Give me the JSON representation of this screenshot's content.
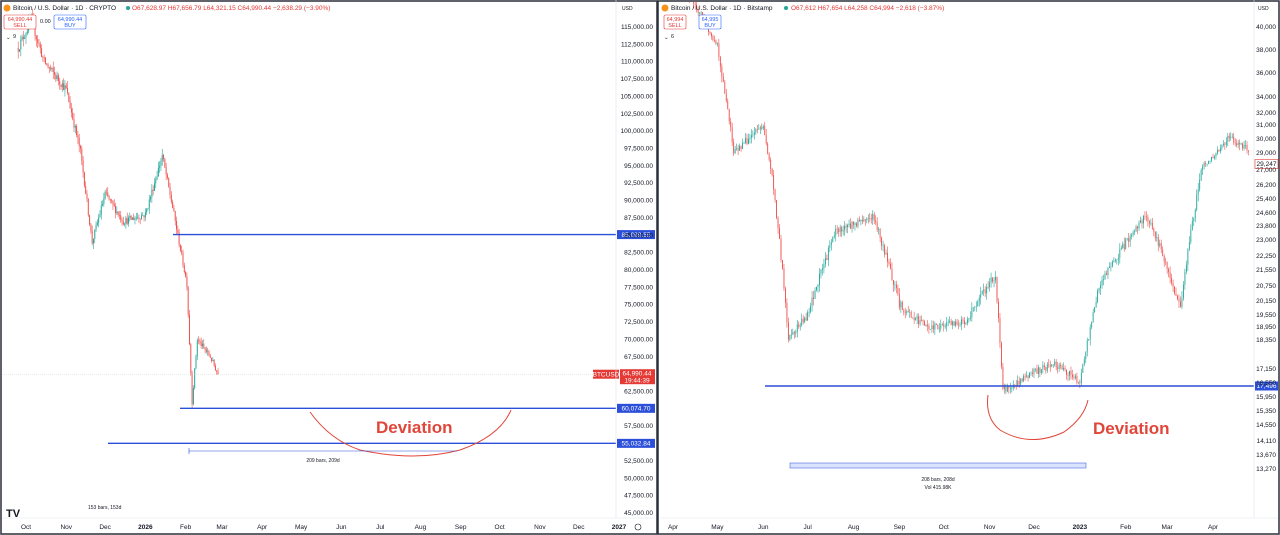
{
  "colors": {
    "up": "#26a69a",
    "down": "#ef5350",
    "level_line": "#2b4fd8",
    "annotation": "#e0463a",
    "price_label": "#e53935",
    "border": "#2a2e39"
  },
  "left": {
    "header": {
      "symbol": "Bitcoin / U.S. Dollar · 1D · CRYPTO",
      "ohlc": "O67,628.97 H67,656.79 L64,321.15 C64,990.44 −2,638.29 (−3.90%)",
      "sell_price": "64,990.44",
      "sell_label": "SELL",
      "buy_price": "64,990.44",
      "buy_label": "BUY",
      "spread": "0.00",
      "currency": "USD",
      "indicator_count": "9"
    },
    "y_ticks": [
      "115,000.00",
      "112,500.00",
      "110,000.00",
      "107,500.00",
      "105,000.00",
      "102,500.00",
      "100,000.00",
      "97,500.00",
      "95,000.00",
      "92,500.00",
      "90,000.00",
      "87,500.00",
      "85,000.00",
      "82,500.00",
      "80,000.00",
      "77,500.00",
      "75,000.00",
      "72,500.00",
      "70,000.00",
      "67,500.00",
      "62,500.00",
      "57,500.00",
      "52,500.00",
      "50,000.00",
      "47,500.00",
      "45,000.00"
    ],
    "x_ticks": [
      "Oct",
      "Nov",
      "Dec",
      "2026",
      "Feb",
      "Mar",
      "Apr",
      "May",
      "Jun",
      "Jul",
      "Aug",
      "Sep",
      "Oct",
      "Nov",
      "Dec",
      "2027"
    ],
    "levels": [
      "85,099.55",
      "60,074.70",
      "55,032.84"
    ],
    "current": {
      "symbol": "BTCUSD",
      "price": "64,990.44",
      "countdown": "19:44:39"
    },
    "annotation": "Deviation",
    "range_label": "209 bars, 209d",
    "bottom_note": "153 bars, 153d"
  },
  "right": {
    "header": {
      "symbol": "Bitcoin / U.S. Dollar · 1D · Bitstamp",
      "ohlc": "O67,612 H67,654 L64,258 C64,994 −2,618 (−3.87%)",
      "sell_price": "64,994",
      "sell_label": "SELL",
      "buy_price": "64,995",
      "buy_label": "BUY",
      "currency": "USD",
      "indicator_count": "6"
    },
    "y_ticks": [
      "40,000",
      "38,000",
      "36,000",
      "34,000",
      "32,000",
      "31,000",
      "30,000",
      "29,000",
      "27,000",
      "26,200",
      "25,400",
      "24,600",
      "23,800",
      "23,000",
      "22,250",
      "21,550",
      "20,750",
      "20,150",
      "19,550",
      "18,950",
      "18,350",
      "17,150",
      "16,550",
      "15,950",
      "15,350",
      "14,550",
      "14,110",
      "13,670",
      "13,270"
    ],
    "x_ticks": [
      "Apr",
      "May",
      "Jun",
      "Jul",
      "Aug",
      "Sep",
      "Oct",
      "Nov",
      "Dec",
      "2023",
      "Feb",
      "Mar",
      "Apr"
    ],
    "level": "17,496",
    "current_price": "29,247",
    "annotation": "Deviation",
    "range_label": "208 bars, 208d",
    "range_sublabel": "Vol 415.98K"
  },
  "chart_data": [
    {
      "type": "candlestick",
      "title": "Bitcoin / U.S. Dollar · 1D · CRYPTO",
      "ylim": [
        44000,
        117000
      ],
      "x_range": [
        "Oct 2025",
        "Jan 2027"
      ],
      "grid": false,
      "approx_path": [
        [
          "Sep 25 2025",
          112000
        ],
        [
          "Oct 5 2025",
          116000
        ],
        [
          "Oct 15 2025",
          110000
        ],
        [
          "Nov 1 2025",
          106000
        ],
        [
          "Nov 12 2025",
          97000
        ],
        [
          "Nov 21 2025",
          84000
        ],
        [
          "Dec 1 2025",
          91000
        ],
        [
          "Dec 15 2025",
          87000
        ],
        [
          "Jan 1 2026",
          88000
        ],
        [
          "Jan 14 2026",
          96500
        ],
        [
          "Jan 22 2026",
          89000
        ],
        [
          "Feb 2 2026",
          78000
        ],
        [
          "Feb 6 2026",
          61000
        ],
        [
          "Feb 10 2026",
          70000
        ],
        [
          "Feb 20 2026",
          67500
        ],
        [
          "Feb 26 2026",
          64990
        ]
      ],
      "horizontal_levels": [
        85099.55,
        60074.7,
        55032.84
      ],
      "last_price": 64990.44
    },
    {
      "type": "candlestick",
      "title": "Bitcoin / U.S. Dollar · 1D · Bitstamp",
      "ylim": [
        13000,
        41000
      ],
      "scale": "log",
      "x_range": [
        "Apr 2022",
        "Apr 2023"
      ],
      "grid": false,
      "approx_path": [
        [
          "Apr 1 2022",
          45000
        ],
        [
          "Apr 20 2022",
          41000
        ],
        [
          "May 1 2022",
          38500
        ],
        [
          "May 12 2022",
          29000
        ],
        [
          "Jun 1 2022",
          31000
        ],
        [
          "Jun 18 2022",
          18500
        ],
        [
          "Jul 1 2022",
          19500
        ],
        [
          "Jul 20 2022",
          23500
        ],
        [
          "Aug 14 2022",
          24400
        ],
        [
          "Sep 1 2022",
          20000
        ],
        [
          "Sep 20 2022",
          18900
        ],
        [
          "Oct 15 2022",
          19200
        ],
        [
          "Nov 5 2022",
          21300
        ],
        [
          "Nov 10 2022",
          16200
        ],
        [
          "Dec 1 2022",
          17000
        ],
        [
          "Dec 15 2022",
          17400
        ],
        [
          "Jan 1 2023",
          16600
        ],
        [
          "Jan 14 2023",
          20800
        ],
        [
          "Feb 15 2023",
          24500
        ],
        [
          "Mar 10 2023",
          19800
        ],
        [
          "Mar 25 2023",
          27500
        ],
        [
          "Apr 12 2023",
          30200
        ],
        [
          "Apr 25 2023",
          29247
        ]
      ],
      "horizontal_levels": [
        17496
      ],
      "last_price": 29247
    }
  ]
}
